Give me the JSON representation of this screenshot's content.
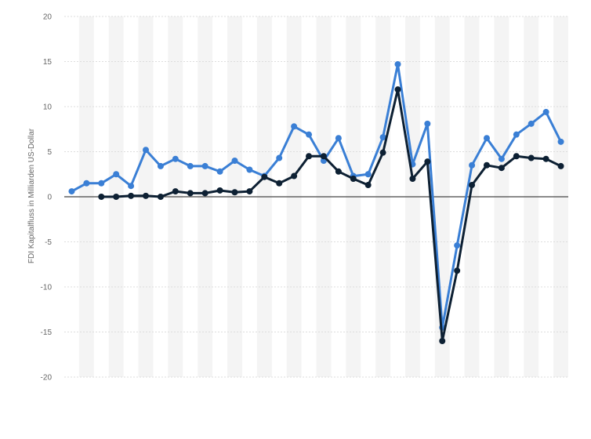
{
  "chart_data": {
    "type": "line",
    "title": "",
    "xlabel": "",
    "ylabel": "FDI Kapitalfluss in Milliarden US-Dollar",
    "ylim": [
      -20,
      20
    ],
    "yticks": [
      20,
      15,
      10,
      5,
      0,
      -5,
      -10,
      -15,
      -20
    ],
    "grid": true,
    "legend": "none",
    "x": [
      1,
      2,
      3,
      4,
      5,
      6,
      7,
      8,
      9,
      10,
      11,
      12,
      13,
      14,
      15,
      16,
      17,
      18,
      19,
      20,
      21,
      22,
      23,
      24,
      25,
      26,
      27,
      28,
      29,
      30,
      31,
      32,
      33,
      34
    ],
    "series": [
      {
        "color": "#3a7fd5",
        "values": [
          0.6,
          1.5,
          1.5,
          2.5,
          1.2,
          5.2,
          3.4,
          4.2,
          3.4,
          3.4,
          2.8,
          4.0,
          3.0,
          2.3,
          4.3,
          7.8,
          6.9,
          4.0,
          6.5,
          2.3,
          2.5,
          6.6,
          14.7,
          3.6,
          8.1,
          -14.5,
          -5.4,
          3.5,
          6.5,
          4.2,
          6.9,
          8.1,
          9.4,
          6.1
        ]
      },
      {
        "color": "#0d2033",
        "values": [
          null,
          null,
          0.0,
          0.0,
          0.1,
          0.1,
          0.0,
          0.6,
          0.4,
          0.4,
          0.7,
          0.5,
          0.6,
          2.2,
          1.5,
          2.3,
          4.5,
          4.5,
          2.8,
          2.0,
          1.3,
          4.9,
          11.9,
          2.0,
          3.9,
          -16.0,
          -8.2,
          1.3,
          3.5,
          3.2,
          4.5,
          4.3,
          4.2,
          3.4
        ]
      }
    ]
  }
}
